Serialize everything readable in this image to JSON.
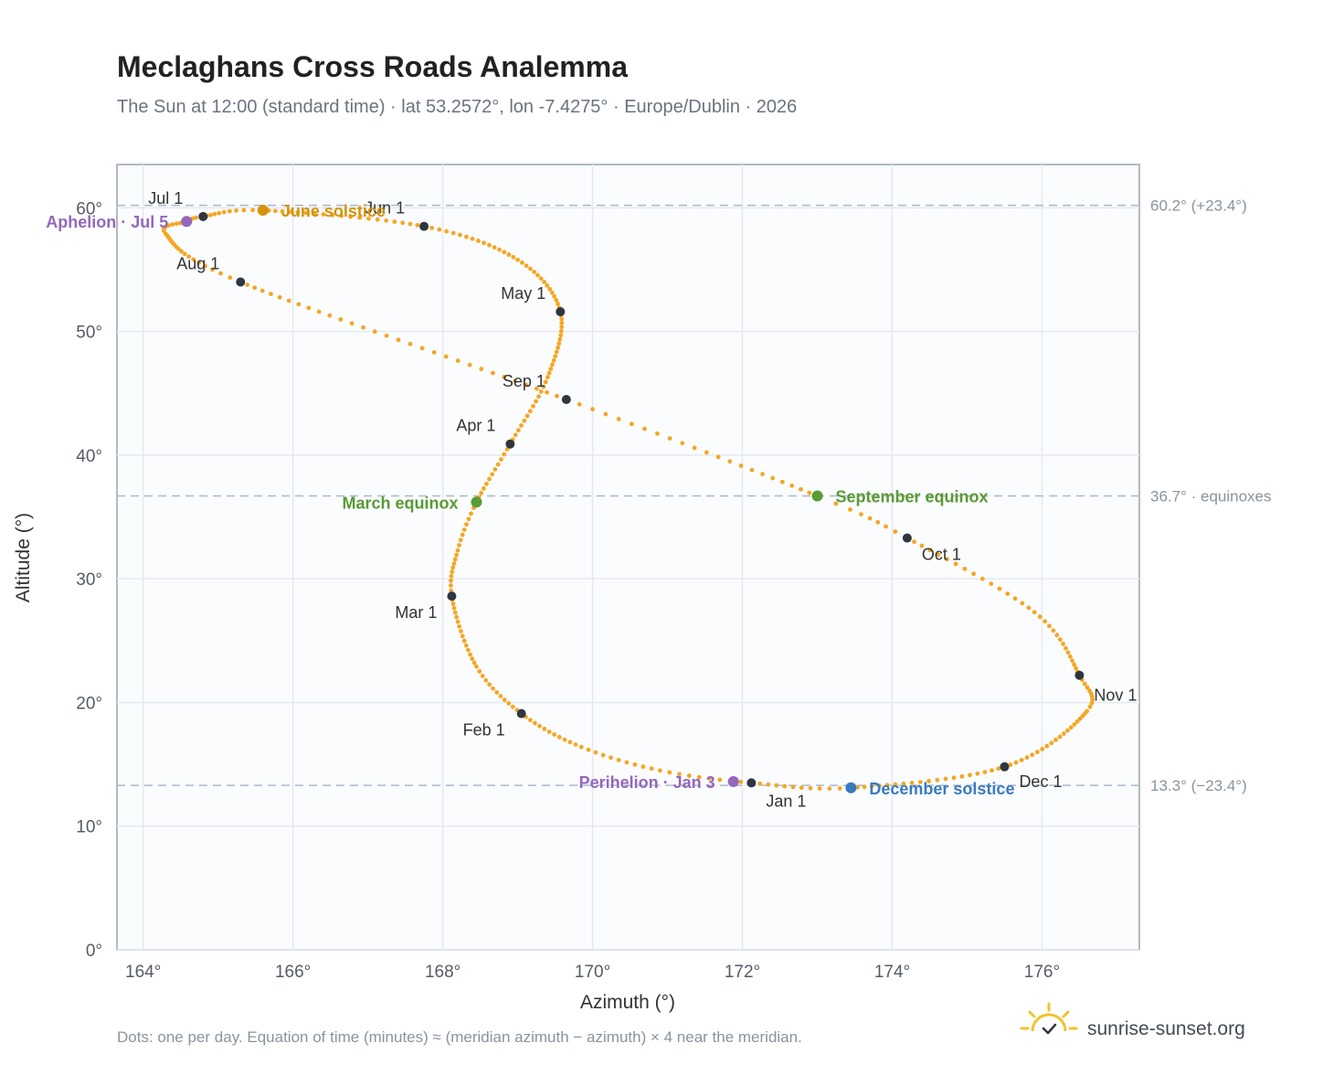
{
  "header": {
    "title": "Meclaghans Cross Roads Analemma",
    "subtitle": "The Sun at 12:00 (standard time) · lat 53.2572°, lon -7.4275° · Europe/Dublin · 2026"
  },
  "footer": {
    "note": "Dots: one per day. Equation of time (minutes) ≈ (meridian azimuth − azimuth) × 4 near the meridian.",
    "brand": "sunrise-sunset.org"
  },
  "colors": {
    "curve": "#f5a623",
    "month_marker": "#2f3640",
    "aphelion": "#9467bd",
    "perihelion": "#9467bd",
    "solstice_june": "#d4930a",
    "equinox": "#5a9a32",
    "solstice_december": "#3a7abf",
    "grid": "#e5e9ef",
    "reference_line": "#aab8c8",
    "plot_background": "#fafcfe",
    "plot_border": "#9aa3ae"
  },
  "chart_data": {
    "type": "scatter",
    "xlabel": "Azimuth (°)",
    "ylabel": "Altitude (°)",
    "xlim": [
      163.65,
      177.3
    ],
    "ylim": [
      0,
      63.5
    ],
    "x_ticks": [
      164,
      166,
      168,
      170,
      172,
      174,
      176
    ],
    "y_ticks": [
      0,
      10,
      20,
      30,
      40,
      50,
      60
    ],
    "x_tick_labels": [
      "164°",
      "166°",
      "168°",
      "170°",
      "172°",
      "174°",
      "176°"
    ],
    "y_tick_labels": [
      "0°",
      "10°",
      "20°",
      "30°",
      "40°",
      "50°",
      "60°"
    ],
    "grid": true,
    "reference_lines": [
      {
        "y": 60.2,
        "label": "60.2° (+23.4°)"
      },
      {
        "y": 36.7,
        "label": "36.7° · equinoxes"
      },
      {
        "y": 13.3,
        "label": "13.3° (−23.4°)"
      }
    ],
    "daily_curve": {
      "points_per_day": 1,
      "anchors": [
        {
          "doy": 1,
          "az": 172.12,
          "alt": 13.5
        },
        {
          "doy": 10,
          "az": 170.9,
          "alt": 14.5
        },
        {
          "doy": 20,
          "az": 169.85,
          "alt": 16.4
        },
        {
          "doy": 32,
          "az": 169.05,
          "alt": 19.1
        },
        {
          "doy": 44,
          "az": 168.45,
          "alt": 22.9
        },
        {
          "doy": 60,
          "az": 168.12,
          "alt": 28.6
        },
        {
          "doy": 70,
          "az": 168.2,
          "alt": 32.3
        },
        {
          "doy": 79,
          "az": 168.45,
          "alt": 36.2
        },
        {
          "doy": 91,
          "az": 168.9,
          "alt": 40.9
        },
        {
          "doy": 105,
          "az": 169.4,
          "alt": 46.3
        },
        {
          "doy": 121,
          "az": 169.57,
          "alt": 51.6
        },
        {
          "doy": 136,
          "az": 169.0,
          "alt": 55.8
        },
        {
          "doy": 152,
          "az": 167.75,
          "alt": 58.5
        },
        {
          "doy": 172,
          "az": 165.6,
          "alt": 59.8
        },
        {
          "doy": 182,
          "az": 164.8,
          "alt": 59.3
        },
        {
          "doy": 186,
          "az": 164.58,
          "alt": 58.9
        },
        {
          "doy": 195,
          "az": 164.3,
          "alt": 57.9
        },
        {
          "doy": 213,
          "az": 165.3,
          "alt": 54.0
        },
        {
          "doy": 244,
          "az": 169.65,
          "alt": 44.5
        },
        {
          "doy": 266,
          "az": 173.0,
          "alt": 36.7
        },
        {
          "doy": 274,
          "az": 174.2,
          "alt": 33.3
        },
        {
          "doy": 290,
          "az": 175.9,
          "alt": 27.3
        },
        {
          "doy": 305,
          "az": 176.5,
          "alt": 22.2
        },
        {
          "doy": 315,
          "az": 176.6,
          "alt": 19.3
        },
        {
          "doy": 335,
          "az": 175.5,
          "alt": 14.8
        },
        {
          "doy": 355,
          "az": 173.45,
          "alt": 13.1
        },
        {
          "doy": 366,
          "az": 172.12,
          "alt": 13.5
        }
      ]
    },
    "month_markers": [
      {
        "label": "Jan 1",
        "az": 172.12,
        "alt": 13.5
      },
      {
        "label": "Feb 1",
        "az": 169.05,
        "alt": 19.1
      },
      {
        "label": "Mar 1",
        "az": 168.12,
        "alt": 28.6
      },
      {
        "label": "Apr 1",
        "az": 168.9,
        "alt": 40.9
      },
      {
        "label": "May 1",
        "az": 169.57,
        "alt": 51.6
      },
      {
        "label": "Jun 1",
        "az": 167.75,
        "alt": 58.5
      },
      {
        "label": "Jul 1",
        "az": 164.8,
        "alt": 59.3
      },
      {
        "label": "Aug 1",
        "az": 165.3,
        "alt": 54.0
      },
      {
        "label": "Sep 1",
        "az": 169.65,
        "alt": 44.5
      },
      {
        "label": "Oct 1",
        "az": 174.2,
        "alt": 33.3
      },
      {
        "label": "Nov 1",
        "az": 176.5,
        "alt": 22.2
      },
      {
        "label": "Dec 1",
        "az": 175.5,
        "alt": 14.8
      }
    ],
    "events": [
      {
        "label": "Aphelion · Jul 5",
        "az": 164.58,
        "alt": 58.9,
        "color": "#9467bd",
        "side": "left"
      },
      {
        "label": "June solstice",
        "az": 165.6,
        "alt": 59.8,
        "color": "#d4930a",
        "side": "right"
      },
      {
        "label": "March equinox",
        "az": 168.45,
        "alt": 36.2,
        "color": "#5a9a32",
        "side": "left"
      },
      {
        "label": "September equinox",
        "az": 173.0,
        "alt": 36.7,
        "color": "#5a9a32",
        "side": "right"
      },
      {
        "label": "Perihelion · Jan 3",
        "az": 171.88,
        "alt": 13.6,
        "color": "#9467bd",
        "side": "left"
      },
      {
        "label": "December solstice",
        "az": 173.45,
        "alt": 13.1,
        "color": "#3a7abf",
        "side": "right"
      }
    ]
  }
}
